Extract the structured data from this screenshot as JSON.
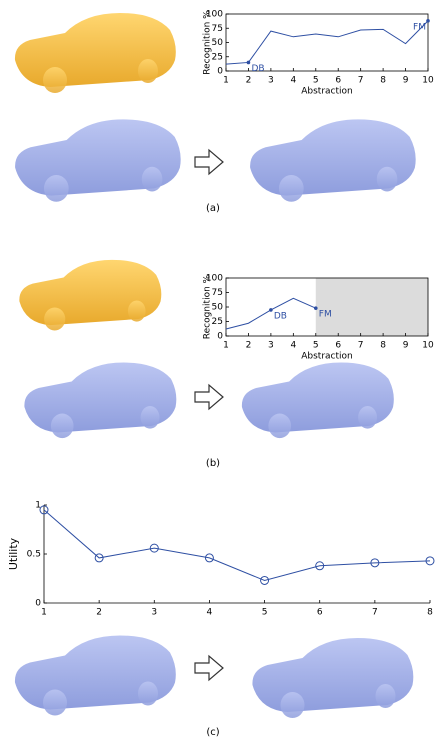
{
  "chart_data": [
    {
      "type": "line",
      "caption": "(a)",
      "x_label": "Abstraction",
      "y_label": "Recognition %",
      "x": [
        1,
        2,
        3,
        4,
        5,
        6,
        7,
        8,
        9,
        10
      ],
      "values": [
        12,
        15,
        70,
        60,
        65,
        60,
        72,
        73,
        48,
        88
      ],
      "color": "#2e4fa3",
      "xlim": [
        1,
        10
      ],
      "xticks": [
        1,
        2,
        3,
        4,
        5,
        6,
        7,
        8,
        9,
        10
      ],
      "ylim": [
        0,
        100
      ],
      "yticks": [
        0,
        25,
        50,
        75,
        100
      ],
      "annotations": [
        {
          "text": "DB",
          "x": 2
        },
        {
          "text": "FM",
          "x": 10
        }
      ]
    },
    {
      "type": "line",
      "caption": "(b)",
      "x_label": "Abstraction",
      "y_label": "Recognition %",
      "x": [
        1,
        2,
        3,
        4,
        5
      ],
      "values": [
        12,
        22,
        45,
        65,
        48
      ],
      "color": "#2e4fa3",
      "xlim": [
        1,
        10
      ],
      "xticks": [
        1,
        2,
        3,
        4,
        5,
        6,
        7,
        8,
        9,
        10
      ],
      "ylim": [
        0,
        100
      ],
      "yticks": [
        0,
        25,
        50,
        75,
        100
      ],
      "shade_x": [
        5,
        10
      ],
      "annotations": [
        {
          "text": "DB",
          "x": 3
        },
        {
          "text": "FM",
          "x": 5
        }
      ]
    },
    {
      "type": "line",
      "caption": "(c)",
      "y_label": "Utility",
      "markers": "circle",
      "x": [
        1,
        2,
        3,
        4,
        5,
        6,
        7,
        8
      ],
      "values": [
        0.95,
        0.46,
        0.56,
        0.46,
        0.23,
        0.38,
        0.41,
        0.43
      ],
      "color": "#2e4fa3",
      "xlim": [
        1,
        8
      ],
      "xticks": [
        1,
        2,
        3,
        4,
        5,
        6,
        7,
        8
      ],
      "ylim": [
        0,
        1
      ],
      "yticks": [
        0,
        0.5,
        1
      ]
    }
  ]
}
